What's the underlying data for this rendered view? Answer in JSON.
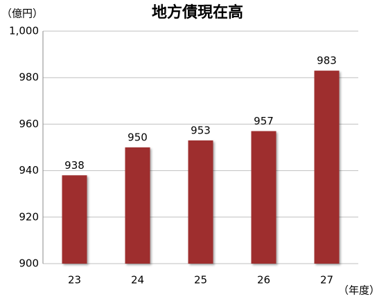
{
  "chart_data": {
    "type": "bar",
    "title": "地方債現在高",
    "y_label": "（億円）",
    "x_label": "（年度）",
    "categories": [
      "23",
      "24",
      "25",
      "26",
      "27"
    ],
    "values": [
      938,
      950,
      953,
      957,
      983
    ],
    "color": "#9e2f2f",
    "ylim": [
      900,
      1000
    ],
    "yticks": [
      900,
      920,
      940,
      960,
      980,
      {
        "value": 1000,
        "label": "1,000"
      }
    ],
    "grid": true
  }
}
